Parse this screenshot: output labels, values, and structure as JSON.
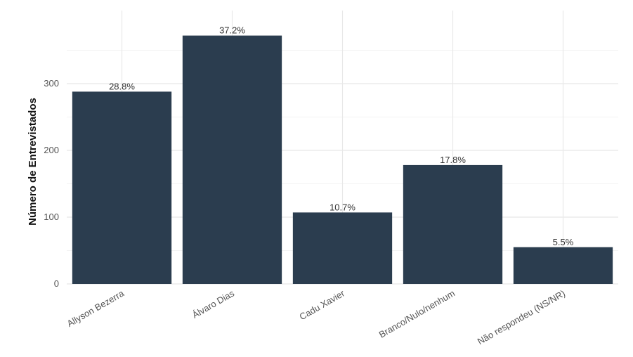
{
  "chart_data": {
    "type": "bar",
    "title": "",
    "xlabel": "",
    "ylabel": "Número de Entrevistados",
    "categories": [
      "Allyson Bezerra",
      "Álvaro Dias",
      "Cadu Xavier",
      "Branco/Nulo/nenhum",
      "Não respondeu (NS/NR)"
    ],
    "values": [
      288,
      372,
      107,
      178,
      55
    ],
    "labels": [
      "28.8%",
      "37.2%",
      "10.7%",
      "17.8%",
      "5.5%"
    ],
    "yticks": [
      "0",
      "100",
      "200",
      "300"
    ],
    "ylim": [
      0,
      390
    ],
    "grid": true,
    "bar_color": "#2b3d4f",
    "grid_color": "#e8e8e8"
  }
}
